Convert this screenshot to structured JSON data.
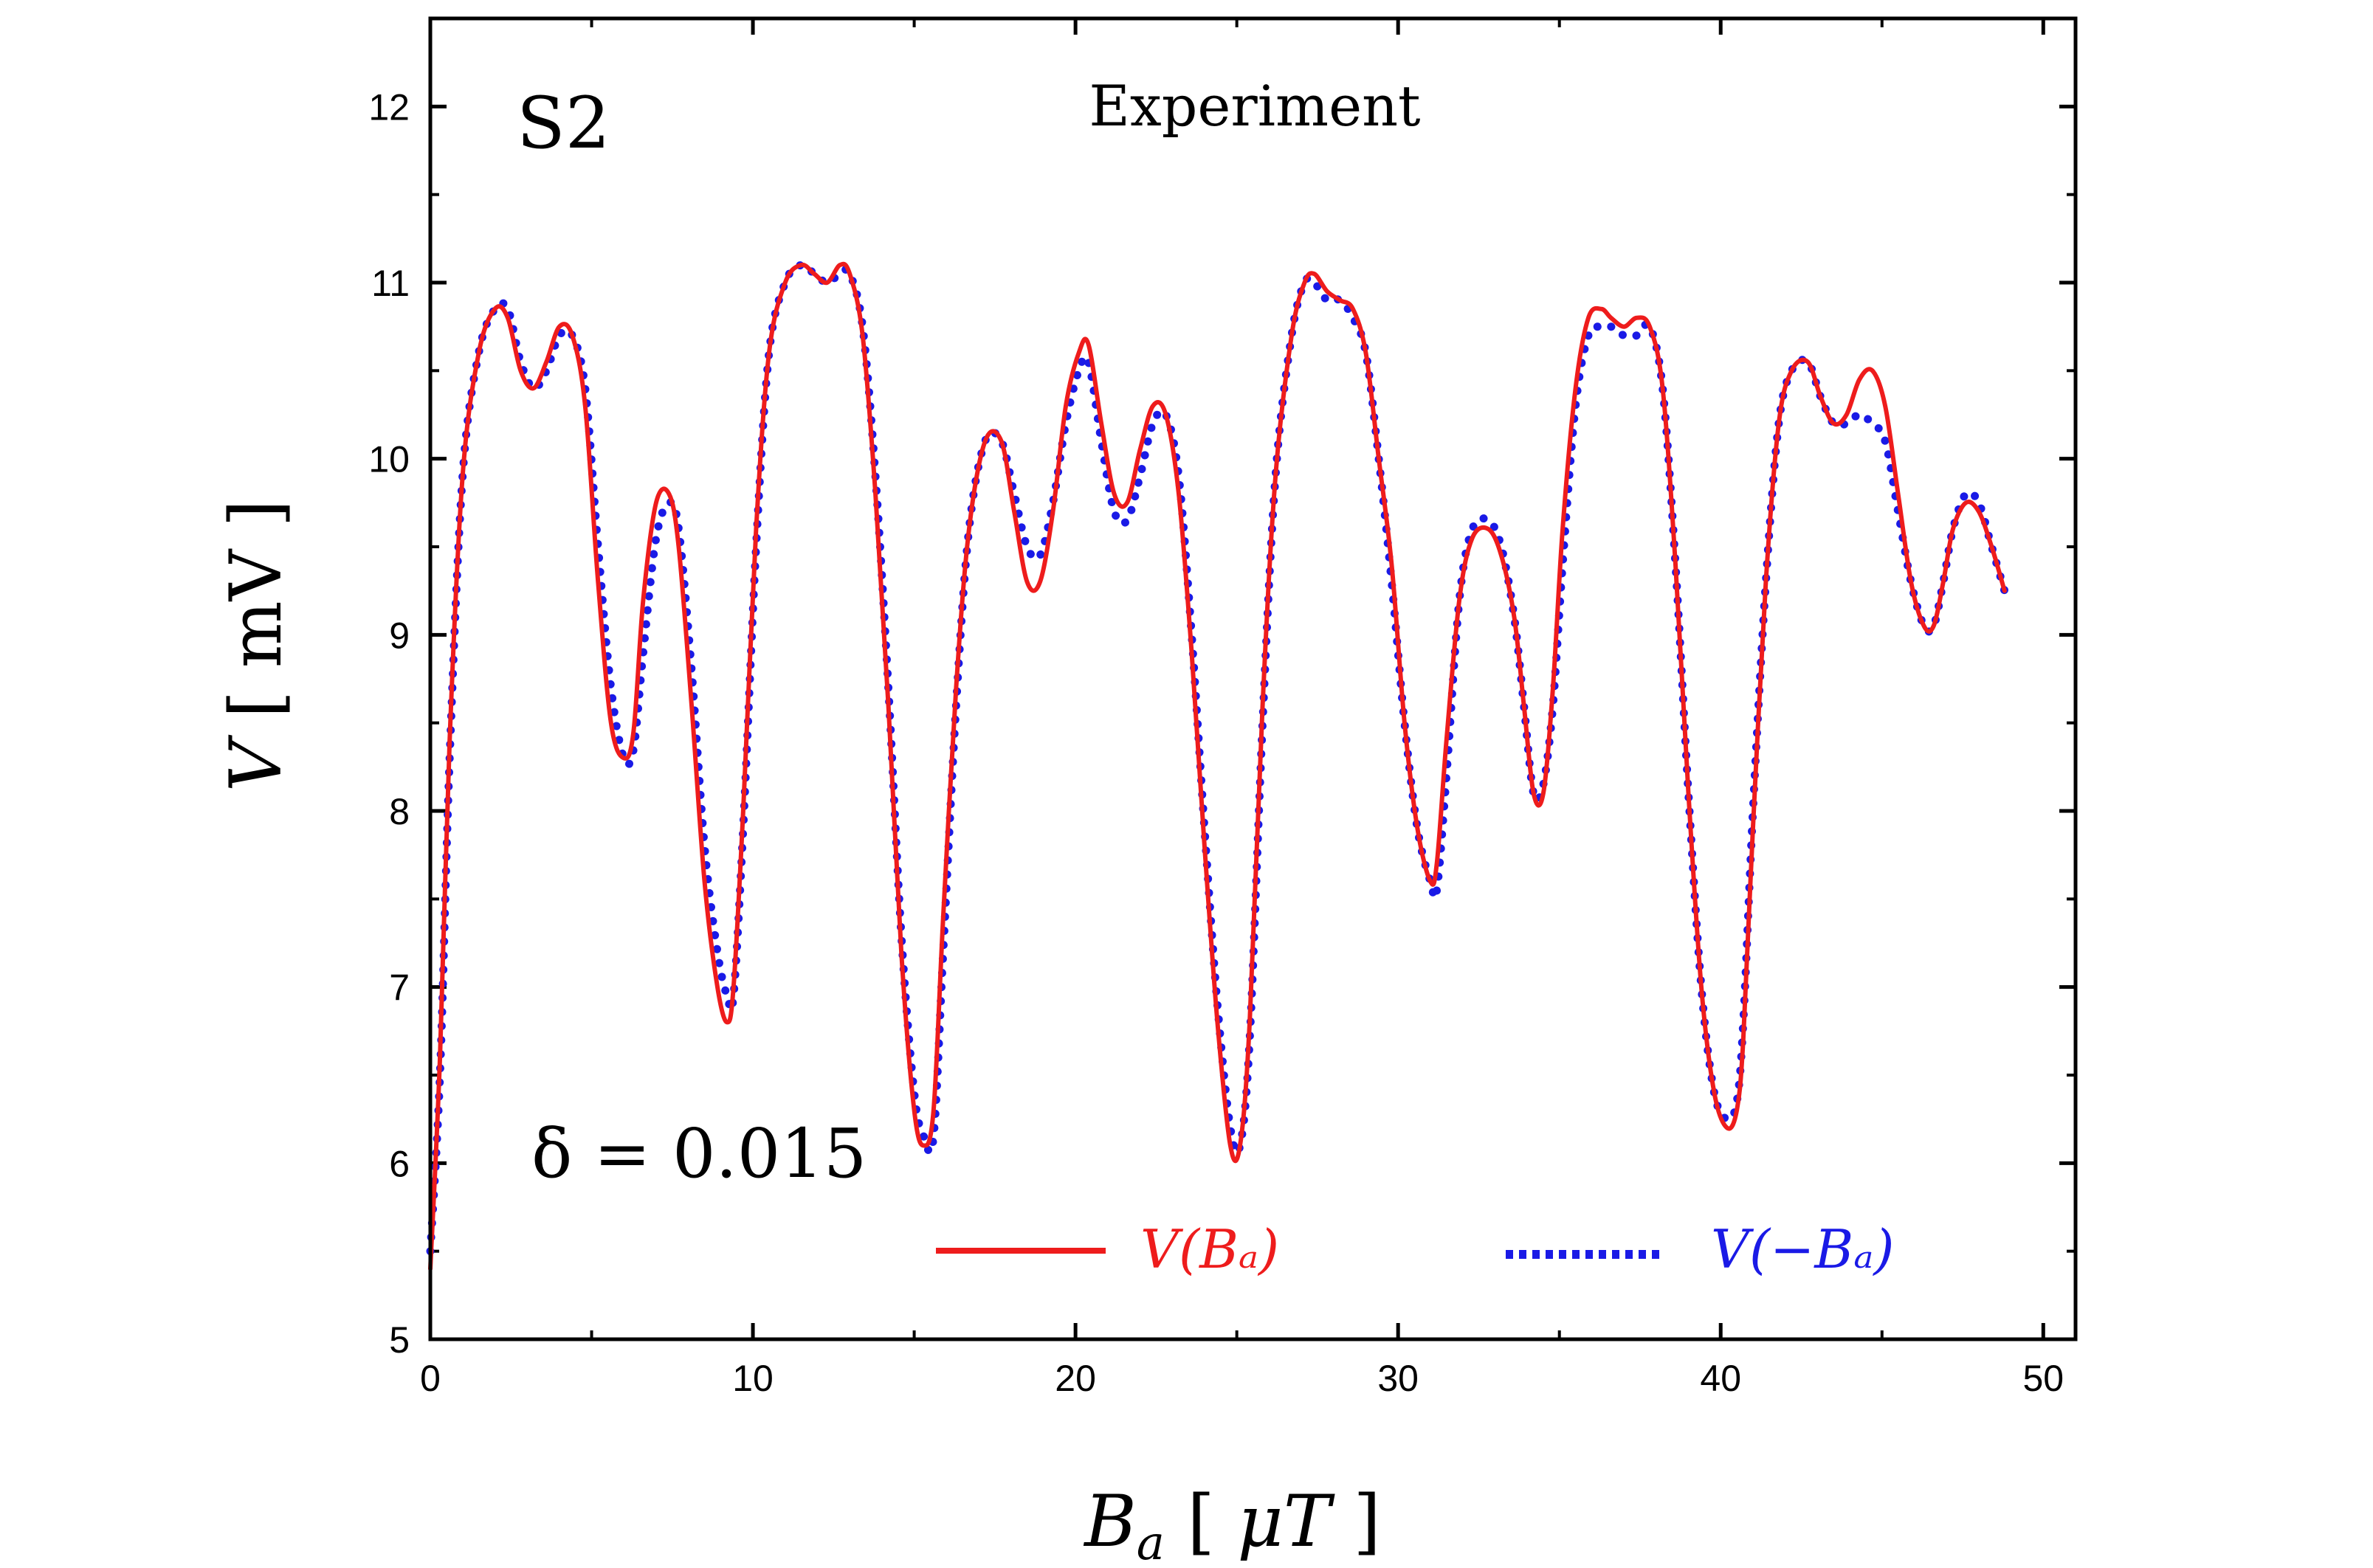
{
  "chart_data": {
    "type": "line",
    "sample_label": "S2",
    "subtitle": "Experiment",
    "annotation": "δ = 0.015",
    "xlabel": {
      "symbol": "B",
      "subscript": "a",
      "unit": "μT"
    },
    "ylabel": {
      "symbol": "V",
      "unit": "mV"
    },
    "xlim": [
      0,
      51
    ],
    "ylim": [
      5,
      12.5
    ],
    "xticks": [
      0,
      10,
      20,
      30,
      40,
      50
    ],
    "yticks": [
      5,
      6,
      7,
      8,
      9,
      10,
      11,
      12
    ],
    "grid": false,
    "legend_position": "bottom-right",
    "series": [
      {
        "name": "V(B_a)",
        "legend_label": "V(Bₐ)",
        "color": "#ee1c1c",
        "style": "solid",
        "x": [
          0,
          0.3,
          0.6,
          1.0,
          1.5,
          2.0,
          2.4,
          2.8,
          3.2,
          3.6,
          4.0,
          4.4,
          4.8,
          5.2,
          5.6,
          6.0,
          6.3,
          6.6,
          7.0,
          7.4,
          7.7,
          8.1,
          8.5,
          8.9,
          9.2,
          9.4,
          9.7,
          10.1,
          10.5,
          11.0,
          11.5,
          11.9,
          12.3,
          12.7,
          13.0,
          13.4,
          13.8,
          14.2,
          14.6,
          15.0,
          15.3,
          15.6,
          15.9,
          16.3,
          16.7,
          17.2,
          17.7,
          18.1,
          18.5,
          18.9,
          19.3,
          19.7,
          20.1,
          20.4,
          20.8,
          21.2,
          21.6,
          22.0,
          22.4,
          22.8,
          23.2,
          23.6,
          24.0,
          24.4,
          24.8,
          25.1,
          25.4,
          25.8,
          26.2,
          26.7,
          27.1,
          27.4,
          27.8,
          28.2,
          28.6,
          29.0,
          29.4,
          29.8,
          30.2,
          30.6,
          31.0,
          31.2,
          31.5,
          31.9,
          32.3,
          32.8,
          33.2,
          33.6,
          33.9,
          34.2,
          34.5,
          34.8,
          35.1,
          35.5,
          35.9,
          36.3,
          36.6,
          37.0,
          37.4,
          37.8,
          38.2,
          38.6,
          39.0,
          39.4,
          39.8,
          40.2,
          40.5,
          40.7,
          41.0,
          41.4,
          41.8,
          42.2,
          42.7,
          43.1,
          43.5,
          43.9,
          44.3,
          44.7,
          45.1,
          45.5,
          45.9,
          46.3,
          46.6,
          46.9,
          47.2,
          47.6,
          48.0,
          48.4,
          48.8
        ],
        "y": [
          5.4,
          6.6,
          8.4,
          9.9,
          10.6,
          10.85,
          10.8,
          10.5,
          10.4,
          10.55,
          10.75,
          10.7,
          10.3,
          9.3,
          8.5,
          8.3,
          8.45,
          9.2,
          9.75,
          9.8,
          9.5,
          8.6,
          7.6,
          7.0,
          6.8,
          7.0,
          8.0,
          9.6,
          10.6,
          11.0,
          11.1,
          11.05,
          11.0,
          11.1,
          11.05,
          10.7,
          9.8,
          8.6,
          7.2,
          6.3,
          6.1,
          6.3,
          7.4,
          8.7,
          9.6,
          10.1,
          10.1,
          9.7,
          9.3,
          9.3,
          9.7,
          10.3,
          10.6,
          10.65,
          10.2,
          9.8,
          9.75,
          10.05,
          10.3,
          10.25,
          9.8,
          8.9,
          7.8,
          6.8,
          6.1,
          6.1,
          6.8,
          8.6,
          9.9,
          10.7,
          11.0,
          11.05,
          10.95,
          10.9,
          10.85,
          10.6,
          10.0,
          9.4,
          8.5,
          7.9,
          7.6,
          7.7,
          8.4,
          9.2,
          9.55,
          9.6,
          9.45,
          9.1,
          8.6,
          8.1,
          8.1,
          8.7,
          9.6,
          10.4,
          10.8,
          10.85,
          10.8,
          10.75,
          10.8,
          10.75,
          10.4,
          9.4,
          8.1,
          7.0,
          6.4,
          6.2,
          6.3,
          6.7,
          7.9,
          9.3,
          10.2,
          10.5,
          10.55,
          10.35,
          10.2,
          10.25,
          10.45,
          10.5,
          10.3,
          9.8,
          9.3,
          9.05,
          9.05,
          9.3,
          9.6,
          9.75,
          9.7,
          9.5,
          9.25
        ]
      },
      {
        "name": "V(-B_a)",
        "legend_label": "V(−Bₐ)",
        "color": "#1a1ae6",
        "style": "dotted",
        "x": [
          0,
          0.3,
          0.6,
          1.0,
          1.5,
          2.0,
          2.4,
          2.8,
          3.2,
          3.6,
          4.0,
          4.4,
          4.8,
          5.2,
          5.6,
          6.0,
          6.3,
          6.6,
          7.0,
          7.4,
          7.7,
          8.1,
          8.5,
          8.9,
          9.2,
          9.4,
          9.7,
          10.1,
          10.5,
          11.0,
          11.5,
          11.9,
          12.3,
          12.7,
          13.0,
          13.4,
          13.8,
          14.2,
          14.6,
          15.0,
          15.3,
          15.6,
          15.9,
          16.3,
          16.7,
          17.2,
          17.7,
          18.1,
          18.5,
          18.9,
          19.3,
          19.7,
          20.1,
          20.4,
          20.8,
          21.2,
          21.6,
          22.0,
          22.4,
          22.8,
          23.2,
          23.6,
          24.0,
          24.4,
          24.8,
          25.1,
          25.4,
          25.8,
          26.2,
          26.7,
          27.1,
          27.4,
          27.8,
          28.2,
          28.6,
          29.0,
          29.4,
          29.8,
          30.2,
          30.6,
          31.0,
          31.2,
          31.5,
          31.9,
          32.3,
          32.8,
          33.2,
          33.6,
          33.9,
          34.2,
          34.5,
          34.8,
          35.1,
          35.5,
          35.9,
          36.3,
          36.6,
          37.0,
          37.4,
          37.8,
          38.2,
          38.6,
          39.0,
          39.4,
          39.8,
          40.2,
          40.5,
          40.7,
          41.0,
          41.4,
          41.8,
          42.2,
          42.7,
          43.1,
          43.5,
          43.9,
          44.3,
          44.7,
          45.1,
          45.5,
          45.9,
          46.3,
          46.6,
          46.9,
          47.2,
          47.6,
          48.0,
          48.4,
          48.8
        ],
        "y": [
          5.5,
          6.5,
          8.3,
          9.9,
          10.6,
          10.85,
          10.85,
          10.55,
          10.4,
          10.5,
          10.7,
          10.7,
          10.4,
          9.5,
          8.7,
          8.3,
          8.35,
          8.9,
          9.55,
          9.75,
          9.6,
          8.8,
          7.8,
          7.2,
          6.95,
          6.95,
          7.9,
          9.5,
          10.6,
          11.0,
          11.1,
          11.05,
          11.0,
          11.05,
          11.05,
          10.75,
          9.9,
          8.7,
          7.3,
          6.4,
          6.15,
          6.15,
          7.2,
          8.6,
          9.6,
          10.1,
          10.1,
          9.8,
          9.5,
          9.45,
          9.75,
          10.2,
          10.5,
          10.55,
          10.1,
          9.7,
          9.65,
          9.9,
          10.2,
          10.25,
          9.9,
          9.0,
          7.9,
          6.9,
          6.2,
          6.1,
          6.7,
          8.5,
          9.9,
          10.7,
          11.0,
          11.0,
          10.9,
          10.9,
          10.8,
          10.6,
          10.0,
          9.3,
          8.5,
          7.9,
          7.6,
          7.55,
          8.2,
          9.2,
          9.6,
          9.65,
          9.5,
          9.1,
          8.6,
          8.1,
          8.15,
          8.6,
          9.4,
          10.3,
          10.7,
          10.75,
          10.75,
          10.7,
          10.7,
          10.75,
          10.4,
          9.4,
          8.1,
          7.0,
          6.4,
          6.25,
          6.35,
          6.8,
          8.0,
          9.3,
          10.2,
          10.5,
          10.55,
          10.35,
          10.2,
          10.2,
          10.25,
          10.2,
          10.1,
          9.7,
          9.3,
          9.05,
          9.05,
          9.3,
          9.6,
          9.8,
          9.75,
          9.5,
          9.25
        ]
      }
    ]
  }
}
